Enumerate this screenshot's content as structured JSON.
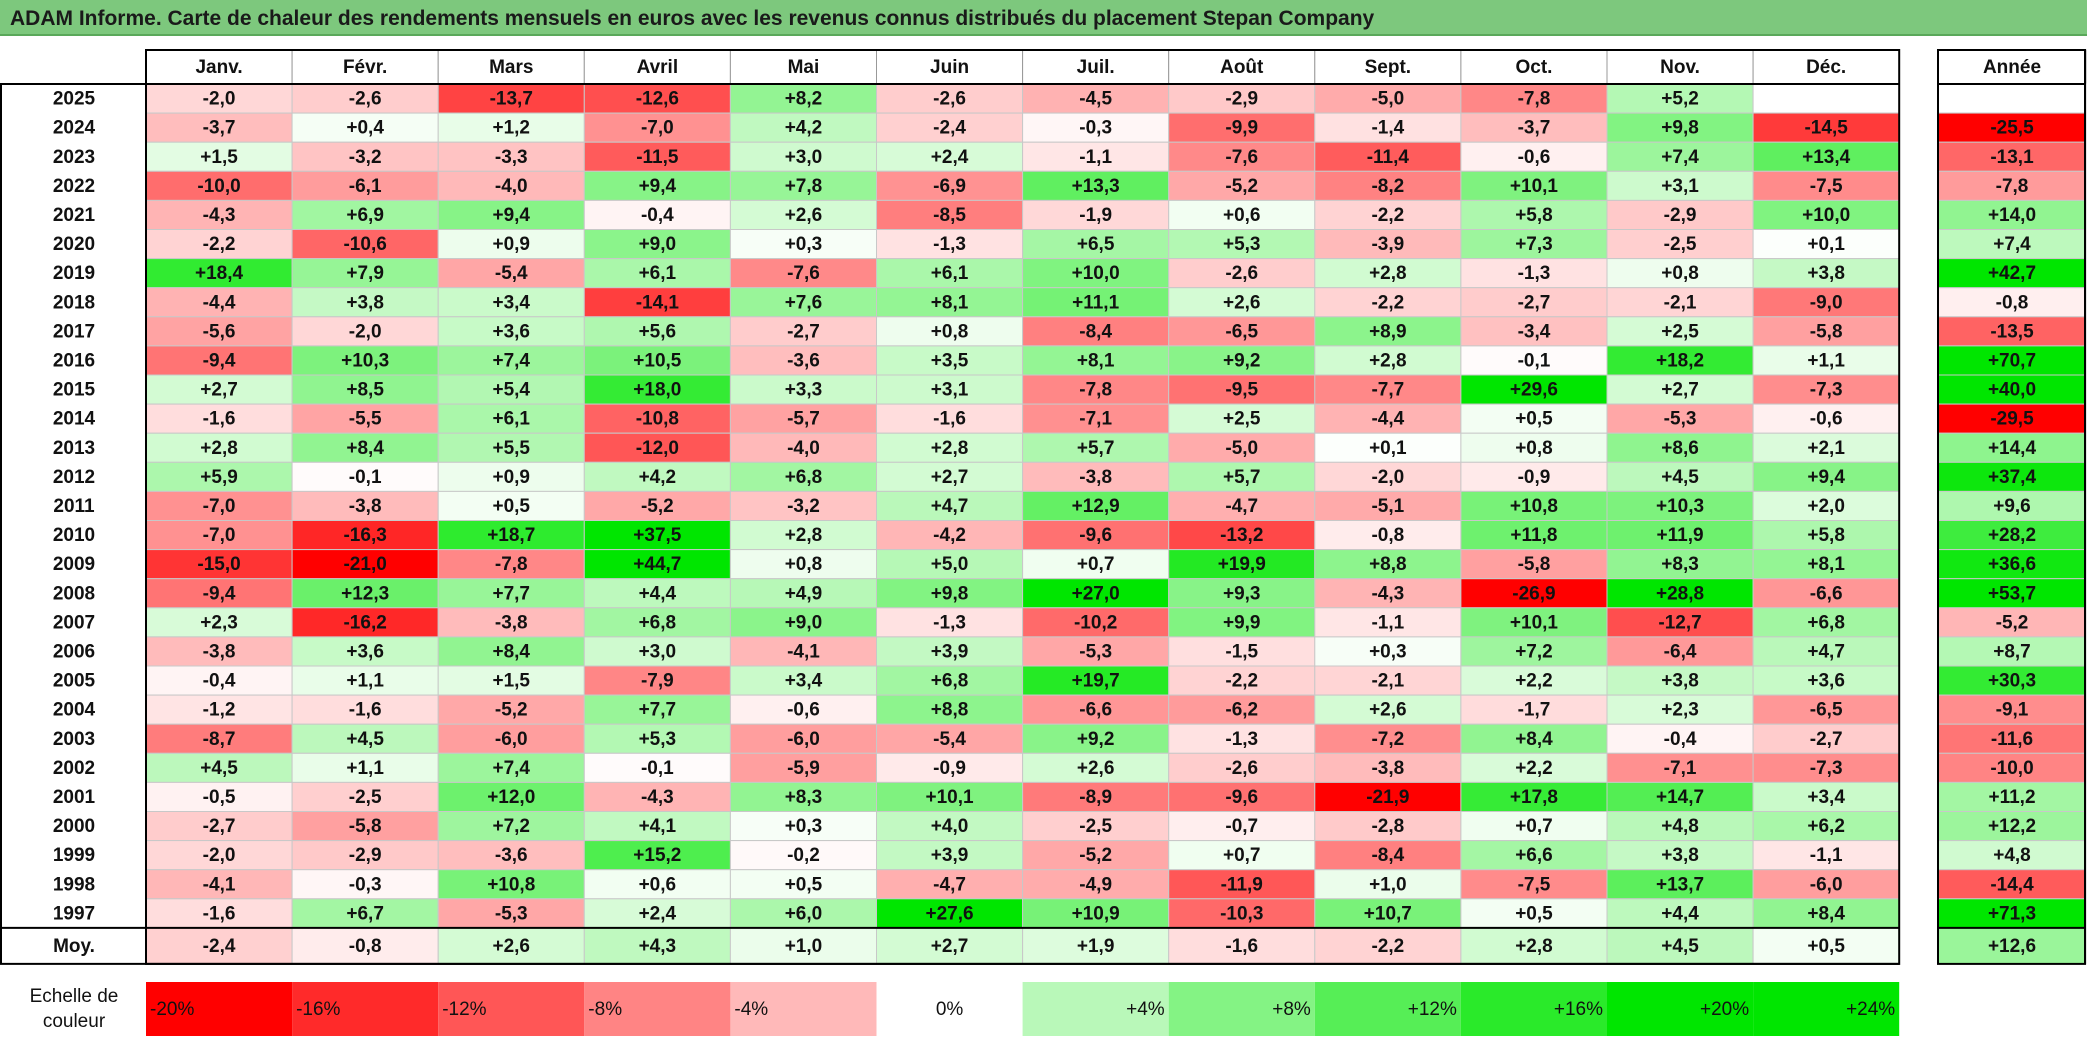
{
  "title": "ADAM Informe. Carte de chaleur des rendements mensuels en euros avec les revenus connus distribués du placement Stepan Company",
  "chart_data": {
    "type": "heatmap",
    "months": [
      "Janv.",
      "Févr.",
      "Mars",
      "Avril",
      "Mai",
      "Juin",
      "Juil.",
      "Août",
      "Sept.",
      "Oct.",
      "Nov.",
      "Déc."
    ],
    "year_header": "Année",
    "rows": [
      {
        "year": "2025",
        "values": [
          "-2,0",
          "-2,6",
          "-13,7",
          "-12,6",
          "+8,2",
          "-2,6",
          "-4,5",
          "-2,9",
          "-5,0",
          "-7,8",
          "+5,2",
          ""
        ],
        "annual": ""
      },
      {
        "year": "2024",
        "values": [
          "-3,7",
          "+0,4",
          "+1,2",
          "-7,0",
          "+4,2",
          "-2,4",
          "-0,3",
          "-9,9",
          "-1,4",
          "-3,7",
          "+9,8",
          "-14,5"
        ],
        "annual": "-25,5"
      },
      {
        "year": "2023",
        "values": [
          "+1,5",
          "-3,2",
          "-3,3",
          "-11,5",
          "+3,0",
          "+2,4",
          "-1,1",
          "-7,6",
          "-11,4",
          "-0,6",
          "+7,4",
          "+13,4"
        ],
        "annual": "-13,1"
      },
      {
        "year": "2022",
        "values": [
          "-10,0",
          "-6,1",
          "-4,0",
          "+9,4",
          "+7,8",
          "-6,9",
          "+13,3",
          "-5,2",
          "-8,2",
          "+10,1",
          "+3,1",
          "-7,5"
        ],
        "annual": "-7,8"
      },
      {
        "year": "2021",
        "values": [
          "-4,3",
          "+6,9",
          "+9,4",
          "-0,4",
          "+2,6",
          "-8,5",
          "-1,9",
          "+0,6",
          "-2,2",
          "+5,8",
          "-2,9",
          "+10,0"
        ],
        "annual": "+14,0"
      },
      {
        "year": "2020",
        "values": [
          "-2,2",
          "-10,6",
          "+0,9",
          "+9,0",
          "+0,3",
          "-1,3",
          "+6,5",
          "+5,3",
          "-3,9",
          "+7,3",
          "-2,5",
          "+0,1"
        ],
        "annual": "+7,4"
      },
      {
        "year": "2019",
        "values": [
          "+18,4",
          "+7,9",
          "-5,4",
          "+6,1",
          "-7,6",
          "+6,1",
          "+10,0",
          "-2,6",
          "+2,8",
          "-1,3",
          "+0,8",
          "+3,8"
        ],
        "annual": "+42,7"
      },
      {
        "year": "2018",
        "values": [
          "-4,4",
          "+3,8",
          "+3,4",
          "-14,1",
          "+7,6",
          "+8,1",
          "+11,1",
          "+2,6",
          "-2,2",
          "-2,7",
          "-2,1",
          "-9,0"
        ],
        "annual": "-0,8"
      },
      {
        "year": "2017",
        "values": [
          "-5,6",
          "-2,0",
          "+3,6",
          "+5,6",
          "-2,7",
          "+0,8",
          "-8,4",
          "-6,5",
          "+8,9",
          "-3,4",
          "+2,5",
          "-5,8"
        ],
        "annual": "-13,5"
      },
      {
        "year": "2016",
        "values": [
          "-9,4",
          "+10,3",
          "+7,4",
          "+10,5",
          "-3,6",
          "+3,5",
          "+8,1",
          "+9,2",
          "+2,8",
          "-0,1",
          "+18,2",
          "+1,1"
        ],
        "annual": "+70,7"
      },
      {
        "year": "2015",
        "values": [
          "+2,7",
          "+8,5",
          "+5,4",
          "+18,0",
          "+3,3",
          "+3,1",
          "-7,8",
          "-9,5",
          "-7,7",
          "+29,6",
          "+2,7",
          "-7,3"
        ],
        "annual": "+40,0"
      },
      {
        "year": "2014",
        "values": [
          "-1,6",
          "-5,5",
          "+6,1",
          "-10,8",
          "-5,7",
          "-1,6",
          "-7,1",
          "+2,5",
          "-4,4",
          "+0,5",
          "-5,3",
          "-0,6"
        ],
        "annual": "-29,5"
      },
      {
        "year": "2013",
        "values": [
          "+2,8",
          "+8,4",
          "+5,5",
          "-12,0",
          "-4,0",
          "+2,8",
          "+5,7",
          "-5,0",
          "+0,1",
          "+0,8",
          "+8,6",
          "+2,1"
        ],
        "annual": "+14,4"
      },
      {
        "year": "2012",
        "values": [
          "+5,9",
          "-0,1",
          "+0,9",
          "+4,2",
          "+6,8",
          "+2,7",
          "-3,8",
          "+5,7",
          "-2,0",
          "-0,9",
          "+4,5",
          "+9,4"
        ],
        "annual": "+37,4"
      },
      {
        "year": "2011",
        "values": [
          "-7,0",
          "-3,8",
          "+0,5",
          "-5,2",
          "-3,2",
          "+4,7",
          "+12,9",
          "-4,7",
          "-5,1",
          "+10,8",
          "+10,3",
          "+2,0"
        ],
        "annual": "+9,6"
      },
      {
        "year": "2010",
        "values": [
          "-7,0",
          "-16,3",
          "+18,7",
          "+37,5",
          "+2,8",
          "-4,2",
          "-9,6",
          "-13,2",
          "-0,8",
          "+11,8",
          "+11,9",
          "+5,8"
        ],
        "annual": "+28,2"
      },
      {
        "year": "2009",
        "values": [
          "-15,0",
          "-21,0",
          "-7,8",
          "+44,7",
          "+0,8",
          "+5,0",
          "+0,7",
          "+19,9",
          "+8,8",
          "-5,8",
          "+8,3",
          "+8,1"
        ],
        "annual": "+36,6"
      },
      {
        "year": "2008",
        "values": [
          "-9,4",
          "+12,3",
          "+7,7",
          "+4,4",
          "+4,9",
          "+9,8",
          "+27,0",
          "+9,3",
          "-4,3",
          "-26,9",
          "+28,8",
          "-6,6"
        ],
        "annual": "+53,7"
      },
      {
        "year": "2007",
        "values": [
          "+2,3",
          "-16,2",
          "-3,8",
          "+6,8",
          "+9,0",
          "-1,3",
          "-10,2",
          "+9,9",
          "-1,1",
          "+10,1",
          "-12,7",
          "+6,8"
        ],
        "annual": "-5,2"
      },
      {
        "year": "2006",
        "values": [
          "-3,8",
          "+3,6",
          "+8,4",
          "+3,0",
          "-4,1",
          "+3,9",
          "-5,3",
          "-1,5",
          "+0,3",
          "+7,2",
          "-6,4",
          "+4,7"
        ],
        "annual": "+8,7"
      },
      {
        "year": "2005",
        "values": [
          "-0,4",
          "+1,1",
          "+1,5",
          "-7,9",
          "+3,4",
          "+6,8",
          "+19,7",
          "-2,2",
          "-2,1",
          "+2,2",
          "+3,8",
          "+3,6"
        ],
        "annual": "+30,3"
      },
      {
        "year": "2004",
        "values": [
          "-1,2",
          "-1,6",
          "-5,2",
          "+7,7",
          "-0,6",
          "+8,8",
          "-6,6",
          "-6,2",
          "+2,6",
          "-1,7",
          "+2,3",
          "-6,5"
        ],
        "annual": "-9,1"
      },
      {
        "year": "2003",
        "values": [
          "-8,7",
          "+4,5",
          "-6,0",
          "+5,3",
          "-6,0",
          "-5,4",
          "+9,2",
          "-1,3",
          "-7,2",
          "+8,4",
          "-0,4",
          "-2,7"
        ],
        "annual": "-11,6"
      },
      {
        "year": "2002",
        "values": [
          "+4,5",
          "+1,1",
          "+7,4",
          "-0,1",
          "-5,9",
          "-0,9",
          "+2,6",
          "-2,6",
          "-3,8",
          "+2,2",
          "-7,1",
          "-7,3"
        ],
        "annual": "-10,0"
      },
      {
        "year": "2001",
        "values": [
          "-0,5",
          "-2,5",
          "+12,0",
          "-4,3",
          "+8,3",
          "+10,1",
          "-8,9",
          "-9,6",
          "-21,9",
          "+17,8",
          "+14,7",
          "+3,4"
        ],
        "annual": "+11,2"
      },
      {
        "year": "2000",
        "values": [
          "-2,7",
          "-5,8",
          "+7,2",
          "+4,1",
          "+0,3",
          "+4,0",
          "-2,5",
          "-0,7",
          "-2,8",
          "+0,7",
          "+4,8",
          "+6,2"
        ],
        "annual": "+12,2"
      },
      {
        "year": "1999",
        "values": [
          "-2,0",
          "-2,9",
          "-3,6",
          "+15,2",
          "-0,2",
          "+3,9",
          "-5,2",
          "+0,7",
          "-8,4",
          "+6,6",
          "+3,8",
          "-1,1"
        ],
        "annual": "+4,8"
      },
      {
        "year": "1998",
        "values": [
          "-4,1",
          "-0,3",
          "+10,8",
          "+0,6",
          "+0,5",
          "-4,7",
          "-4,9",
          "-11,9",
          "+1,0",
          "-7,5",
          "+13,7",
          "-6,0"
        ],
        "annual": "-14,4"
      },
      {
        "year": "1997",
        "values": [
          "-1,6",
          "+6,7",
          "-5,3",
          "+2,4",
          "+6,0",
          "+27,6",
          "+10,9",
          "-10,3",
          "+10,7",
          "+0,5",
          "+4,4",
          "+8,4"
        ],
        "annual": "+71,3"
      }
    ],
    "average": {
      "label": "Moy.",
      "values": [
        "-2,4",
        "-0,8",
        "+2,6",
        "+4,3",
        "+1,0",
        "+2,7",
        "+1,9",
        "-1,6",
        "-2,2",
        "+2,8",
        "+4,5",
        "+0,5"
      ],
      "annual": "+12,6"
    },
    "scale": {
      "label_line1": "Echelle de",
      "label_line2": "couleur",
      "stops": [
        "-20%",
        "-16%",
        "-12%",
        "-8%",
        "-4%",
        "0%",
        "+4%",
        "+8%",
        "+12%",
        "+16%",
        "+20%",
        "+24%"
      ]
    },
    "colors": {
      "neg_full": "#ff0000",
      "zero": "#ffffff",
      "pos_full": "#00e600",
      "title_bg": "#7dc87d"
    }
  }
}
